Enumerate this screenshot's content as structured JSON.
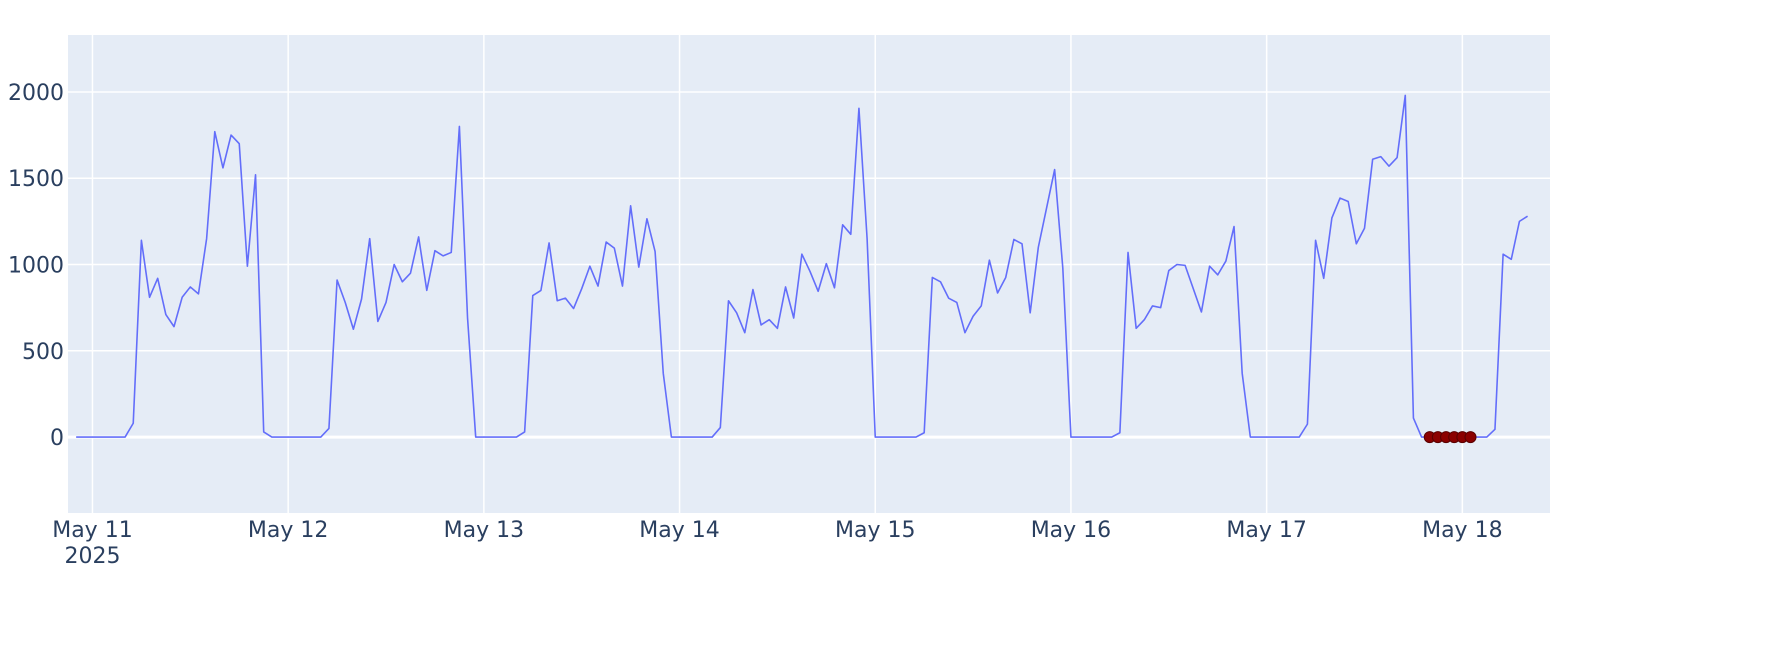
{
  "chart_data": {
    "type": "line",
    "title": "",
    "xlabel": "",
    "ylabel": "",
    "x_start": "2025-05-10 22:00",
    "x_step_hours": 1,
    "xlim": [
      "2025-05-10 21:00",
      "2025-05-18 10:45"
    ],
    "ylim": [
      -440,
      2330
    ],
    "y_ticks": [
      0,
      500,
      1000,
      1500,
      2000
    ],
    "x_ticks": [
      {
        "date": "2025-05-11",
        "label": "May 11",
        "sublabel": "2025"
      },
      {
        "date": "2025-05-12",
        "label": "May 12",
        "sublabel": ""
      },
      {
        "date": "2025-05-13",
        "label": "May 13",
        "sublabel": ""
      },
      {
        "date": "2025-05-14",
        "label": "May 14",
        "sublabel": ""
      },
      {
        "date": "2025-05-15",
        "label": "May 15",
        "sublabel": ""
      },
      {
        "date": "2025-05-16",
        "label": "May 16",
        "sublabel": ""
      },
      {
        "date": "2025-05-17",
        "label": "May 17",
        "sublabel": ""
      },
      {
        "date": "2025-05-18",
        "label": "May 18",
        "sublabel": ""
      }
    ],
    "grid": true,
    "colors": {
      "plot_bg": "#e5ecf6",
      "grid": "#ffffff",
      "line": "#636efa",
      "marker": "#8b0000",
      "text": "#2a3f5f"
    },
    "series": [
      {
        "values": [
          0,
          0,
          0,
          0,
          0,
          0,
          0,
          80,
          1140,
          810,
          920,
          710,
          640,
          810,
          870,
          830,
          1150,
          1770,
          1560,
          1750,
          1700,
          990,
          1520,
          30,
          0,
          0,
          0,
          0,
          0,
          0,
          0,
          50,
          910,
          780,
          625,
          800,
          1150,
          670,
          780,
          1000,
          900,
          950,
          1160,
          850,
          1080,
          1050,
          1070,
          1800,
          690,
          0,
          0,
          0,
          0,
          0,
          0,
          30,
          820,
          850,
          1125,
          790,
          805,
          745,
          860,
          990,
          875,
          1130,
          1095,
          875,
          1340,
          985,
          1265,
          1075,
          370,
          0,
          0,
          0,
          0,
          0,
          0,
          55,
          790,
          720,
          605,
          855,
          650,
          680,
          630,
          870,
          690,
          1060,
          960,
          845,
          1005,
          865,
          1230,
          1175,
          1905,
          1150,
          0,
          0,
          0,
          0,
          0,
          0,
          25,
          925,
          900,
          805,
          780,
          605,
          700,
          760,
          1025,
          835,
          925,
          1145,
          1120,
          720,
          1100,
          1325,
          1550,
          980,
          0,
          0,
          0,
          0,
          0,
          0,
          25,
          1070,
          630,
          680,
          760,
          750,
          965,
          1000,
          995,
          860,
          725,
          990,
          940,
          1020,
          1220,
          370,
          0,
          0,
          0,
          0,
          0,
          0,
          0,
          75,
          1140,
          920,
          1270,
          1385,
          1365,
          1120,
          1210,
          1610,
          1625,
          1570,
          1620,
          1980,
          110,
          0,
          0,
          0,
          0,
          0,
          0,
          0,
          0,
          0,
          45,
          1060,
          1030,
          1250,
          1280
        ]
      },
      {
        "name": "",
        "mode": "markers",
        "x": [
          "2025-05-17 20:00",
          "2025-05-17 21:00",
          "2025-05-17 22:00",
          "2025-05-17 23:00",
          "2025-05-18 00:00",
          "2025-05-18 01:00"
        ],
        "values": [
          0,
          0,
          0,
          0,
          0,
          0
        ]
      }
    ]
  }
}
